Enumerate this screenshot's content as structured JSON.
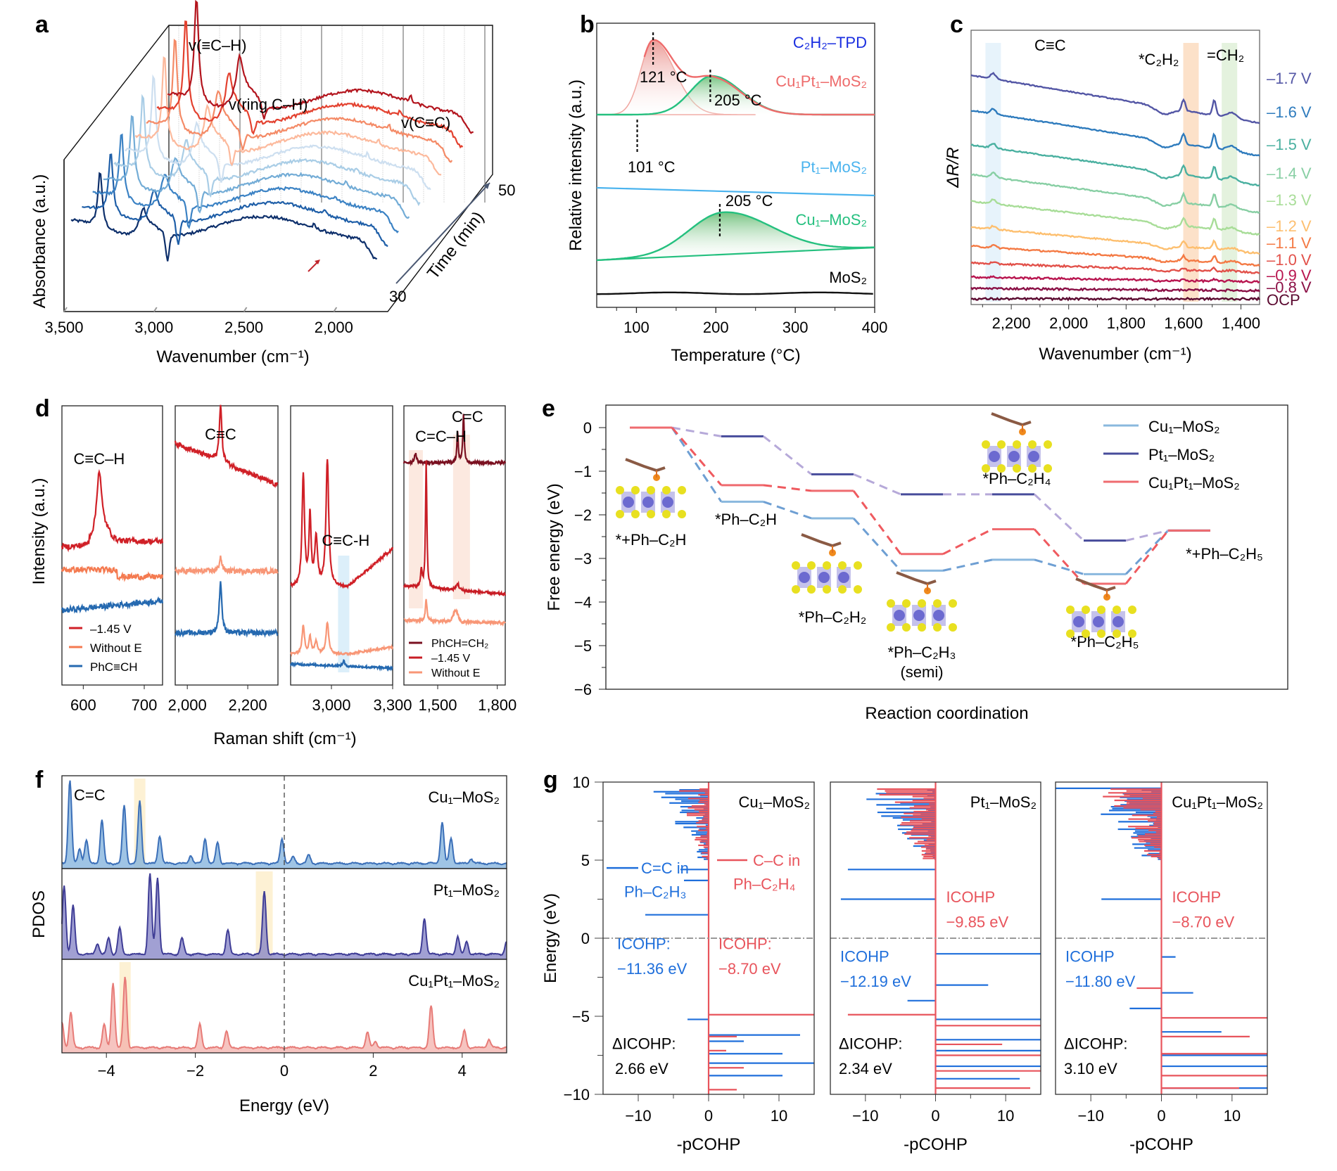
{
  "figure": {
    "panels": [
      "a",
      "b",
      "c",
      "d",
      "e",
      "f",
      "g"
    ]
  },
  "chart_data": [
    {
      "id": "a",
      "type": "line",
      "style": "3d-waterfall",
      "xlabel": "Wavenumber (cm⁻¹)",
      "ylabel": "Absorbance (a.u.)",
      "zlabel": "Time (min)",
      "xticks": [
        "3,500",
        "3,000",
        "2,500",
        "2,000"
      ],
      "xtick_values": [
        3500,
        3000,
        2500,
        2000
      ],
      "xlim": [
        3500,
        1700
      ],
      "zticks": [
        "30",
        "50"
      ],
      "zlim": [
        30,
        50
      ],
      "n_series": 10,
      "series_colors": [
        "#0d2f6b",
        "#1f5fa8",
        "#3b82c4",
        "#73acd6",
        "#a9cde6",
        "#cddff0",
        "#fcb99c",
        "#f48a66",
        "#e3412f",
        "#b3141d"
      ],
      "annotations": [
        {
          "text": "v(≡C–H)",
          "x": 3300
        },
        {
          "text": "v(ring C–H)",
          "x": 3060
        },
        {
          "text": "v(C≡C)",
          "x": 2110
        }
      ],
      "peaks": [
        {
          "label": "≡C–H",
          "x": 3300,
          "height": 1.0
        },
        {
          "label": "ring C–H",
          "x": 3060,
          "height": 0.35
        },
        {
          "label": "C≡C",
          "x": 2110,
          "height": 0.12
        }
      ],
      "arrow_at": 2110
    },
    {
      "id": "b",
      "type": "area",
      "title": "C₂H₂–TPD",
      "xlabel": "Temperature (°C)",
      "ylabel": "Relative intensity (a.u.)",
      "xlim": [
        50,
        400
      ],
      "xticks": [
        "100",
        "200",
        "300",
        "400"
      ],
      "xtick_values": [
        100,
        200,
        300,
        400
      ],
      "series": [
        {
          "name": "Cu₁Pt₁–MoS₂",
          "color": "#ee6b6b",
          "peaks": [
            {
              "center": 121,
              "height": 1.0,
              "label": "121 °C"
            },
            {
              "center": 205,
              "height": 0.55,
              "label": "205 °C"
            }
          ]
        },
        {
          "name": "Pt₁–MoS₂",
          "color": "#4ab3ee",
          "peaks": [
            {
              "center": 101,
              "height": 1.0,
              "label": "101 °C"
            }
          ]
        },
        {
          "name": "Cu₁–MoS₂",
          "color": "#25c07f",
          "peaks": [
            {
              "center": 205,
              "height": 1.0,
              "label": "205 °C"
            }
          ]
        },
        {
          "name": "MoS₂",
          "color": "#111111",
          "peaks": []
        }
      ]
    },
    {
      "id": "c",
      "type": "line",
      "xlabel": "Wavenumber (cm⁻¹)",
      "ylabel": "ΔR/R",
      "xlim": [
        2340,
        1335
      ],
      "xticks": [
        "2,200",
        "2,000",
        "1,800",
        "1,600",
        "1,400"
      ],
      "xtick_values": [
        2200,
        2000,
        1800,
        1600,
        1400
      ],
      "bands": [
        {
          "label": "C≡C",
          "center": 2263,
          "color": "#e3f1fa"
        },
        {
          "label": "*C₂H₂",
          "center": 1574,
          "color": "#fbdcc0"
        },
        {
          "label": "=CH₂",
          "center": 1440,
          "color": "#dff0d8"
        }
      ],
      "series": [
        {
          "name": "–1.7 V",
          "color": "#5356a5",
          "amp": 1.0
        },
        {
          "name": "–1.6 V",
          "color": "#2e7bbd",
          "amp": 0.95
        },
        {
          "name": "–1.5 V",
          "color": "#4ab0a0",
          "amp": 0.85
        },
        {
          "name": "–1.4 V",
          "color": "#88cfa4",
          "amp": 0.8
        },
        {
          "name": "–1.3 V",
          "color": "#a8dd98",
          "amp": 0.7
        },
        {
          "name": "–1.2 V",
          "color": "#fdbf6f",
          "amp": 0.55
        },
        {
          "name": "–1.1 V",
          "color": "#f47a44",
          "amp": 0.4
        },
        {
          "name": "–1.0 V",
          "color": "#e2514a",
          "amp": 0.2
        },
        {
          "name": "–0.9 V",
          "color": "#b8154f",
          "amp": 0.1
        },
        {
          "name": "–0.8 V",
          "color": "#8a0f45",
          "amp": 0.05
        },
        {
          "name": "OCP",
          "color": "#5b0a30",
          "amp": 0.0
        }
      ]
    },
    {
      "id": "d",
      "type": "line",
      "xlabel": "Raman shift (cm⁻¹)",
      "ylabel": "Intensity (a.u.)",
      "subplots": [
        {
          "xlim": [
            565,
            730
          ],
          "xticks": [
            "600",
            "700"
          ],
          "xtick_values": [
            600,
            700
          ],
          "annotation": "C≡C–H",
          "series": [
            {
              "name": "–1.45 V",
              "color": "#d02027",
              "peak": 626,
              "height": 1.0
            },
            {
              "name": "Without E",
              "color": "#f47a50",
              "peak": null,
              "height": 0
            },
            {
              "name": "PhC≡CH",
              "color": "#2569b0",
              "peak": null,
              "height": 0
            }
          ],
          "legend": [
            "–1.45 V",
            "Without E",
            "PhC≡CH"
          ]
        },
        {
          "xlim": [
            1960,
            2300
          ],
          "xticks": [
            "2,000",
            "2,200"
          ],
          "xtick_values": [
            2000,
            2200
          ],
          "annotation": "C≡C",
          "series": [
            {
              "name": "–1.45 V",
              "color": "#d02027",
              "peak": 2110,
              "height": 1.0
            },
            {
              "name": "Without E",
              "color": "#f89676",
              "peak": 2110,
              "height": 0.2
            },
            {
              "name": "PhC≡CH",
              "color": "#2569b0",
              "peak": 2110,
              "height": 1.0
            }
          ]
        },
        {
          "xlim": [
            2800,
            3300
          ],
          "xticks": [
            "3,000",
            "3,300"
          ],
          "xtick_values": [
            3000,
            3300
          ],
          "annotation": "C≡C-H",
          "series": [
            {
              "name": "–1.45 V",
              "color": "#d02027",
              "peaks": [
                2860,
                2890,
                2930,
                2975
              ],
              "height": 1.0
            },
            {
              "name": "Without E",
              "color": "#f89676",
              "peaks": [
                2860,
                2890,
                2930,
                2975
              ],
              "height": 0.25
            },
            {
              "name": "PhC≡CH",
              "color": "#2569b0",
              "peaks": [
                3060
              ],
              "height": 0.06
            }
          ]
        },
        {
          "xlim": [
            1330,
            1840
          ],
          "xticks": [
            "1,500",
            "1,800"
          ],
          "xtick_values": [
            1500,
            1800
          ],
          "annotations": [
            "C=C–H",
            "C=C"
          ],
          "series": [
            {
              "name": "PhCH=CH₂",
              "color": "#7a1020",
              "peaks": [
                1390,
                1602,
                1632
              ]
            },
            {
              "name": "–1.45 V",
              "color": "#c81d25",
              "peaks": [
                1420,
                1442,
                1610
              ]
            },
            {
              "name": "Without E",
              "color": "#f89676",
              "peaks": [
                1442,
                1590
              ]
            }
          ],
          "legend": [
            "PhCH=CH₂",
            "–1.45 V",
            "Without E"
          ]
        }
      ]
    },
    {
      "id": "e",
      "type": "line",
      "style": "energy-profile",
      "xlabel": "Reaction coordination",
      "ylabel": "Free energy (eV)",
      "ylim": [
        -6,
        0.5
      ],
      "yticks": [
        "0",
        "−1",
        "−2",
        "−3",
        "−4",
        "−5",
        "−6"
      ],
      "ytick_values": [
        0,
        -1,
        -2,
        -3,
        -4,
        -5,
        -6
      ],
      "steps": [
        "*+Ph–C₂H",
        "*Ph–C₂H",
        "*Ph–C₂H₂",
        "*Ph–C₂H₃ (semi)",
        "*Ph–C₂H₄",
        "*Ph–C₂H₅",
        "*+Ph–C₂H₅"
      ],
      "series": [
        {
          "name": "Cu₁–MoS₂",
          "color": "#8ab8de",
          "dash_color": "#6e9fd3",
          "values": [
            0,
            -1.7,
            -2.08,
            -3.28,
            -3.03,
            -3.36,
            -2.36
          ]
        },
        {
          "name": "Pt₁–MoS₂",
          "color": "#474c9b",
          "dash_color": "#b6a9d9",
          "values": [
            0,
            -0.2,
            -1.07,
            -1.53,
            -1.53,
            -2.59,
            -2.36
          ]
        },
        {
          "name": "Cu₁Pt₁–MoS₂",
          "color": "#ef6b6f",
          "dash_color": "#ef5a5f",
          "values": [
            0,
            -1.32,
            -1.45,
            -2.9,
            -2.33,
            -3.58,
            -2.36
          ]
        }
      ]
    },
    {
      "id": "f",
      "type": "area",
      "xlabel": "Energy (eV)",
      "ylabel": "PDOS",
      "xlim": [
        -5,
        5
      ],
      "xticks": [
        "−4",
        "−2",
        "0",
        "2",
        "4"
      ],
      "xtick_values": [
        -4,
        -2,
        0,
        2,
        4
      ],
      "annotation": "C=C",
      "series": [
        {
          "name": "Cu₁–MoS₂",
          "color": "#3b6fb8",
          "fill": "#7fb0dc",
          "highlight": -3.25,
          "peaks": [
            [
              -4.82,
              1.0
            ],
            [
              -4.6,
              0.18
            ],
            [
              -4.45,
              0.28
            ],
            [
              -4.1,
              0.52
            ],
            [
              -3.6,
              0.7
            ],
            [
              -3.25,
              0.75
            ],
            [
              -2.8,
              0.34
            ],
            [
              -2.1,
              0.1
            ],
            [
              -1.78,
              0.3
            ],
            [
              -1.5,
              0.25
            ],
            [
              -0.05,
              0.3
            ],
            [
              0.2,
              0.08
            ],
            [
              0.55,
              0.1
            ],
            [
              3.55,
              0.5
            ],
            [
              3.75,
              0.3
            ],
            [
              4.2,
              0.06
            ]
          ]
        },
        {
          "name": "Pt₁–MoS₂",
          "color": "#3f3d96",
          "fill": "#8180c4",
          "highlight": -0.45,
          "peaks": [
            [
              -4.95,
              0.85
            ],
            [
              -4.75,
              0.6
            ],
            [
              -4.2,
              0.14
            ],
            [
              -3.95,
              0.2
            ],
            [
              -3.7,
              0.33
            ],
            [
              -3.02,
              1.0
            ],
            [
              -2.85,
              0.95
            ],
            [
              -2.3,
              0.2
            ],
            [
              -1.27,
              0.3
            ],
            [
              -0.45,
              0.78
            ],
            [
              3.15,
              0.45
            ],
            [
              3.9,
              0.22
            ],
            [
              4.1,
              0.15
            ],
            [
              5.0,
              0.15
            ]
          ]
        },
        {
          "name": "Cu₁Pt₁–MoS₂",
          "color": "#e77b77",
          "fill": "#f3b0ab",
          "highlight": -3.58,
          "peaks": [
            [
              -5.0,
              0.3
            ],
            [
              -4.8,
              0.42
            ],
            [
              -4.05,
              0.28
            ],
            [
              -3.85,
              0.78
            ],
            [
              -3.58,
              0.85
            ],
            [
              -1.9,
              0.28
            ],
            [
              -1.3,
              0.2
            ],
            [
              1.87,
              0.18
            ],
            [
              2.05,
              0.08
            ],
            [
              3.3,
              0.5
            ],
            [
              4.05,
              0.2
            ],
            [
              4.6,
              0.1
            ]
          ]
        }
      ]
    },
    {
      "id": "g",
      "type": "line",
      "style": "pCOHP",
      "xlabel": "-pCOHP",
      "ylabel": "Energy (eV)",
      "xlim": [
        -15,
        15
      ],
      "ylim": [
        -10,
        10
      ],
      "xticks": [
        "−10",
        "0",
        "10"
      ],
      "xtick_values": [
        -10,
        0,
        10
      ],
      "yticks": [
        "10",
        "5",
        "0",
        "−5",
        "−10"
      ],
      "ytick_values": [
        10,
        5,
        0,
        -5,
        -10
      ],
      "legend": [
        {
          "name": "C=C in Ph–C₂H₃",
          "color": "#1f6fdb"
        },
        {
          "name": "C–C in Ph–C₂H₄",
          "color": "#e8545c"
        }
      ],
      "subplots": [
        {
          "name": "Cu₁–MoS₂",
          "icohp_blue": "−11.36 eV",
          "icohp_red": "−8.70 eV",
          "delta_icohp": "2.66 eV"
        },
        {
          "name": "Pt₁–MoS₂",
          "icohp_blue": "−12.19 eV",
          "icohp_red": "−9.85 eV",
          "delta_icohp": "2.34 eV"
        },
        {
          "name": "Cu₁Pt₁–MoS₂",
          "icohp_blue": "−11.80 eV",
          "icohp_red": "−8.70 eV",
          "delta_icohp": "3.10 eV"
        }
      ]
    }
  ],
  "labels": {
    "icohp_colon": "ICOHP:",
    "icohp": "ICOHP",
    "delta_icohp": "ΔICOHP:"
  }
}
